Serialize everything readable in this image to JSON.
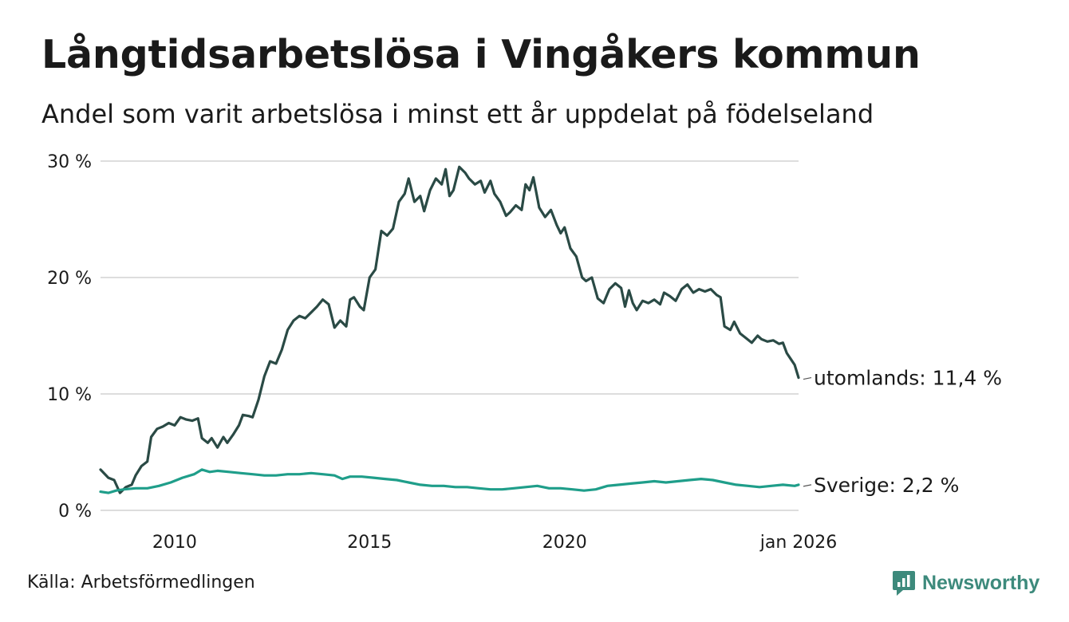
{
  "title": "Långtidsarbetslösa i Vingåkers kommun",
  "subtitle": "Andel som varit arbetslösa i minst ett år uppdelat på födelseland",
  "source": "Källa: Arbetsförmedlingen",
  "brand": "Newsworthy",
  "chart_data": {
    "type": "line",
    "y_ticks": [
      {
        "value": 0,
        "label": "0 %"
      },
      {
        "value": 10,
        "label": "10 %"
      },
      {
        "value": 20,
        "label": "20 %"
      },
      {
        "value": 30,
        "label": "30 %"
      }
    ],
    "x_ticks": [
      {
        "value": 2010,
        "label": "2010"
      },
      {
        "value": 2015,
        "label": "2015"
      },
      {
        "value": 2020,
        "label": "2020"
      },
      {
        "value": 2026,
        "label": "jan 2026"
      }
    ],
    "ylim": [
      0,
      30
    ],
    "xlim": [
      2008.1,
      2026.0
    ],
    "grid": true,
    "series": [
      {
        "name": "utomlands",
        "label": "utomlands: 11,4 %",
        "color": "#2a4a45",
        "points": [
          [
            2008.1,
            3.5
          ],
          [
            2008.3,
            2.8
          ],
          [
            2008.45,
            2.6
          ],
          [
            2008.6,
            1.5
          ],
          [
            2008.75,
            2.0
          ],
          [
            2008.9,
            2.2
          ],
          [
            2009.0,
            3.0
          ],
          [
            2009.15,
            3.8
          ],
          [
            2009.3,
            4.2
          ],
          [
            2009.4,
            6.3
          ],
          [
            2009.55,
            7.0
          ],
          [
            2009.7,
            7.2
          ],
          [
            2009.85,
            7.5
          ],
          [
            2010.0,
            7.3
          ],
          [
            2010.15,
            8.0
          ],
          [
            2010.3,
            7.8
          ],
          [
            2010.45,
            7.7
          ],
          [
            2010.6,
            7.9
          ],
          [
            2010.7,
            6.2
          ],
          [
            2010.85,
            5.8
          ],
          [
            2010.95,
            6.2
          ],
          [
            2011.1,
            5.4
          ],
          [
            2011.25,
            6.3
          ],
          [
            2011.35,
            5.8
          ],
          [
            2011.5,
            6.5
          ],
          [
            2011.65,
            7.3
          ],
          [
            2011.75,
            8.2
          ],
          [
            2011.9,
            8.1
          ],
          [
            2012.0,
            8.0
          ],
          [
            2012.15,
            9.5
          ],
          [
            2012.3,
            11.5
          ],
          [
            2012.45,
            12.8
          ],
          [
            2012.6,
            12.6
          ],
          [
            2012.75,
            13.8
          ],
          [
            2012.9,
            15.5
          ],
          [
            2013.05,
            16.3
          ],
          [
            2013.2,
            16.7
          ],
          [
            2013.35,
            16.5
          ],
          [
            2013.5,
            17.0
          ],
          [
            2013.65,
            17.5
          ],
          [
            2013.8,
            18.1
          ],
          [
            2013.95,
            17.7
          ],
          [
            2014.1,
            15.7
          ],
          [
            2014.25,
            16.3
          ],
          [
            2014.4,
            15.8
          ],
          [
            2014.5,
            18.1
          ],
          [
            2014.6,
            18.3
          ],
          [
            2014.75,
            17.5
          ],
          [
            2014.85,
            17.2
          ],
          [
            2015.0,
            20.0
          ],
          [
            2015.15,
            20.7
          ],
          [
            2015.3,
            24.0
          ],
          [
            2015.45,
            23.6
          ],
          [
            2015.6,
            24.2
          ],
          [
            2015.75,
            26.5
          ],
          [
            2015.9,
            27.2
          ],
          [
            2016.0,
            28.5
          ],
          [
            2016.15,
            26.5
          ],
          [
            2016.3,
            27.0
          ],
          [
            2016.4,
            25.7
          ],
          [
            2016.55,
            27.5
          ],
          [
            2016.7,
            28.5
          ],
          [
            2016.85,
            28.0
          ],
          [
            2016.95,
            29.3
          ],
          [
            2017.05,
            27.0
          ],
          [
            2017.15,
            27.5
          ],
          [
            2017.3,
            29.5
          ],
          [
            2017.45,
            29.0
          ],
          [
            2017.55,
            28.5
          ],
          [
            2017.7,
            28.0
          ],
          [
            2017.85,
            28.3
          ],
          [
            2017.95,
            27.3
          ],
          [
            2018.1,
            28.3
          ],
          [
            2018.2,
            27.2
          ],
          [
            2018.35,
            26.5
          ],
          [
            2018.5,
            25.3
          ],
          [
            2018.6,
            25.6
          ],
          [
            2018.75,
            26.2
          ],
          [
            2018.9,
            25.8
          ],
          [
            2019.0,
            28.0
          ],
          [
            2019.1,
            27.5
          ],
          [
            2019.2,
            28.6
          ],
          [
            2019.35,
            26.0
          ],
          [
            2019.5,
            25.2
          ],
          [
            2019.65,
            25.8
          ],
          [
            2019.8,
            24.5
          ],
          [
            2019.9,
            23.8
          ],
          [
            2020.0,
            24.3
          ],
          [
            2020.15,
            22.5
          ],
          [
            2020.3,
            21.8
          ],
          [
            2020.45,
            20.0
          ],
          [
            2020.55,
            19.7
          ],
          [
            2020.7,
            20.0
          ],
          [
            2020.85,
            18.2
          ],
          [
            2021.0,
            17.8
          ],
          [
            2021.15,
            19.0
          ],
          [
            2021.3,
            19.5
          ],
          [
            2021.45,
            19.1
          ],
          [
            2021.55,
            17.5
          ],
          [
            2021.65,
            18.9
          ],
          [
            2021.75,
            17.8
          ],
          [
            2021.85,
            17.2
          ],
          [
            2022.0,
            18.0
          ],
          [
            2022.15,
            17.8
          ],
          [
            2022.3,
            18.1
          ],
          [
            2022.45,
            17.7
          ],
          [
            2022.55,
            18.7
          ],
          [
            2022.7,
            18.4
          ],
          [
            2022.85,
            18.0
          ],
          [
            2023.0,
            19.0
          ],
          [
            2023.15,
            19.4
          ],
          [
            2023.3,
            18.7
          ],
          [
            2023.45,
            19.0
          ],
          [
            2023.6,
            18.8
          ],
          [
            2023.75,
            19.0
          ],
          [
            2023.9,
            18.5
          ],
          [
            2024.0,
            18.3
          ],
          [
            2024.1,
            15.8
          ],
          [
            2024.25,
            15.5
          ],
          [
            2024.35,
            16.2
          ],
          [
            2024.5,
            15.2
          ],
          [
            2024.65,
            14.8
          ],
          [
            2024.8,
            14.4
          ],
          [
            2024.95,
            15.0
          ],
          [
            2025.05,
            14.7
          ],
          [
            2025.2,
            14.5
          ],
          [
            2025.35,
            14.6
          ],
          [
            2025.5,
            14.3
          ],
          [
            2025.6,
            14.4
          ],
          [
            2025.7,
            13.5
          ],
          [
            2025.8,
            13.0
          ],
          [
            2025.9,
            12.5
          ],
          [
            2026.0,
            11.4
          ]
        ]
      },
      {
        "name": "Sverige",
        "label": "Sverige:  2,2 %",
        "color": "#1f9e8a",
        "points": [
          [
            2008.1,
            1.6
          ],
          [
            2008.3,
            1.5
          ],
          [
            2008.5,
            1.7
          ],
          [
            2008.7,
            1.8
          ],
          [
            2009.0,
            1.9
          ],
          [
            2009.3,
            1.9
          ],
          [
            2009.6,
            2.1
          ],
          [
            2009.9,
            2.4
          ],
          [
            2010.2,
            2.8
          ],
          [
            2010.5,
            3.1
          ],
          [
            2010.7,
            3.5
          ],
          [
            2010.9,
            3.3
          ],
          [
            2011.1,
            3.4
          ],
          [
            2011.4,
            3.3
          ],
          [
            2011.7,
            3.2
          ],
          [
            2012.0,
            3.1
          ],
          [
            2012.3,
            3.0
          ],
          [
            2012.6,
            3.0
          ],
          [
            2012.9,
            3.1
          ],
          [
            2013.2,
            3.1
          ],
          [
            2013.5,
            3.2
          ],
          [
            2013.8,
            3.1
          ],
          [
            2014.1,
            3.0
          ],
          [
            2014.3,
            2.7
          ],
          [
            2014.5,
            2.9
          ],
          [
            2014.8,
            2.9
          ],
          [
            2015.1,
            2.8
          ],
          [
            2015.4,
            2.7
          ],
          [
            2015.7,
            2.6
          ],
          [
            2016.0,
            2.4
          ],
          [
            2016.3,
            2.2
          ],
          [
            2016.6,
            2.1
          ],
          [
            2016.9,
            2.1
          ],
          [
            2017.2,
            2.0
          ],
          [
            2017.5,
            2.0
          ],
          [
            2017.8,
            1.9
          ],
          [
            2018.1,
            1.8
          ],
          [
            2018.4,
            1.8
          ],
          [
            2018.7,
            1.9
          ],
          [
            2019.0,
            2.0
          ],
          [
            2019.3,
            2.1
          ],
          [
            2019.6,
            1.9
          ],
          [
            2019.9,
            1.9
          ],
          [
            2020.2,
            1.8
          ],
          [
            2020.5,
            1.7
          ],
          [
            2020.8,
            1.8
          ],
          [
            2021.1,
            2.1
          ],
          [
            2021.4,
            2.2
          ],
          [
            2021.7,
            2.3
          ],
          [
            2022.0,
            2.4
          ],
          [
            2022.3,
            2.5
          ],
          [
            2022.6,
            2.4
          ],
          [
            2022.9,
            2.5
          ],
          [
            2023.2,
            2.6
          ],
          [
            2023.5,
            2.7
          ],
          [
            2023.8,
            2.6
          ],
          [
            2024.1,
            2.4
          ],
          [
            2024.4,
            2.2
          ],
          [
            2024.7,
            2.1
          ],
          [
            2025.0,
            2.0
          ],
          [
            2025.3,
            2.1
          ],
          [
            2025.6,
            2.2
          ],
          [
            2025.9,
            2.1
          ],
          [
            2026.0,
            2.2
          ]
        ]
      }
    ]
  }
}
